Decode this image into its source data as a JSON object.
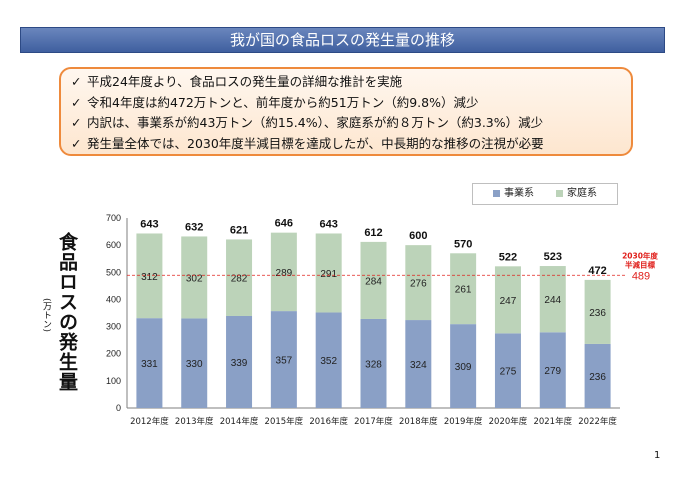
{
  "header": {
    "title": "我が国の食品ロスの発生量の推移"
  },
  "summary": {
    "check": "✓",
    "lines": [
      "平成24年度より、食品ロスの発生量の詳細な推計を実施",
      "令和4年度は約472万トンと、前年度から約51万トン（約9.8%）減少",
      "内訳は、事業系が約43万トン（約15.4%）、家庭系が約８万トン（約3.3%）減少",
      "発生量全体では、2030年度半減目標を達成したが、中長期的な推移の注視が必要"
    ]
  },
  "chart_data": {
    "type": "bar",
    "stacked": true,
    "categories": [
      "2012年度",
      "2013年度",
      "2014年度",
      "2015年度",
      "2016年度",
      "2017年度",
      "2018年度",
      "2019年度",
      "2020年度",
      "2021年度",
      "2022年度"
    ],
    "series": [
      {
        "name": "事業系",
        "values": [
          331,
          330,
          339,
          357,
          352,
          328,
          324,
          309,
          275,
          279,
          236
        ],
        "color": "#8aa0c6"
      },
      {
        "name": "家庭系",
        "values": [
          312,
          302,
          282,
          289,
          291,
          284,
          276,
          261,
          247,
          244,
          236
        ],
        "color": "#bcd3b9"
      }
    ],
    "totals": [
      643,
      632,
      621,
      646,
      643,
      612,
      600,
      570,
      522,
      523,
      472
    ],
    "ylabel": "食品ロスの発生量",
    "yunit": "(万トン)",
    "ylim": [
      0,
      700
    ],
    "yticks": [
      0,
      100,
      200,
      300,
      400,
      500,
      600,
      700
    ],
    "target": {
      "value": 489,
      "label_line1": "2030年度",
      "label_line2": "半減目標",
      "value_label": "489",
      "color": "#e0201c"
    },
    "legend_position": "top-right",
    "grid": false
  },
  "page_number": "1"
}
